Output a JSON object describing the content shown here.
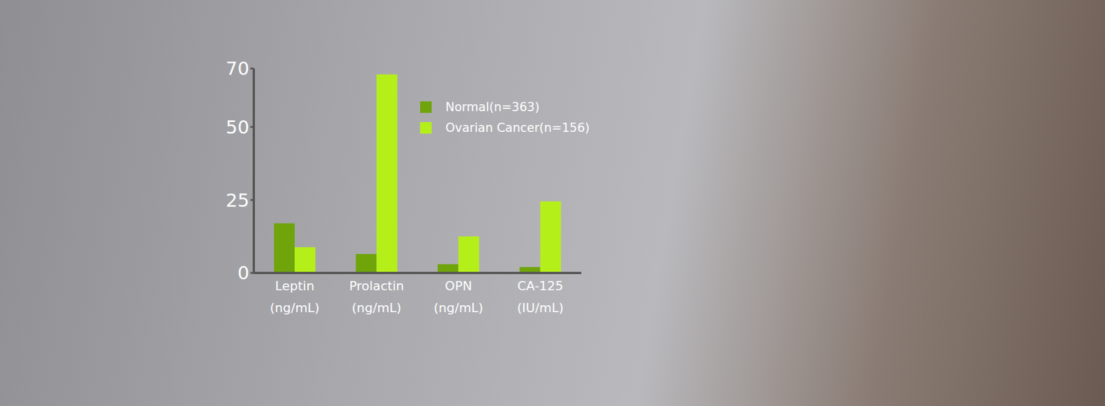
{
  "chart_data": {
    "type": "bar",
    "categories": [
      "Leptin\n(ng/mL)",
      "Prolactin\n(ng/mL)",
      "OPN\n(ng/mL)",
      "CA-125\n(IU/mL)"
    ],
    "series": [
      {
        "name": "Normal(n=363)",
        "color": "#6fa40a",
        "values": [
          17,
          6.5,
          3,
          2
        ]
      },
      {
        "name": "Ovarian Cancer(n=156)",
        "color": "#b5ef1a",
        "values": [
          8.8,
          68,
          12.5,
          24.5
        ]
      }
    ],
    "ylim": [
      0,
      70
    ],
    "yticks": [
      0,
      25,
      50,
      70
    ],
    "grid": false,
    "legend": "upper right"
  }
}
